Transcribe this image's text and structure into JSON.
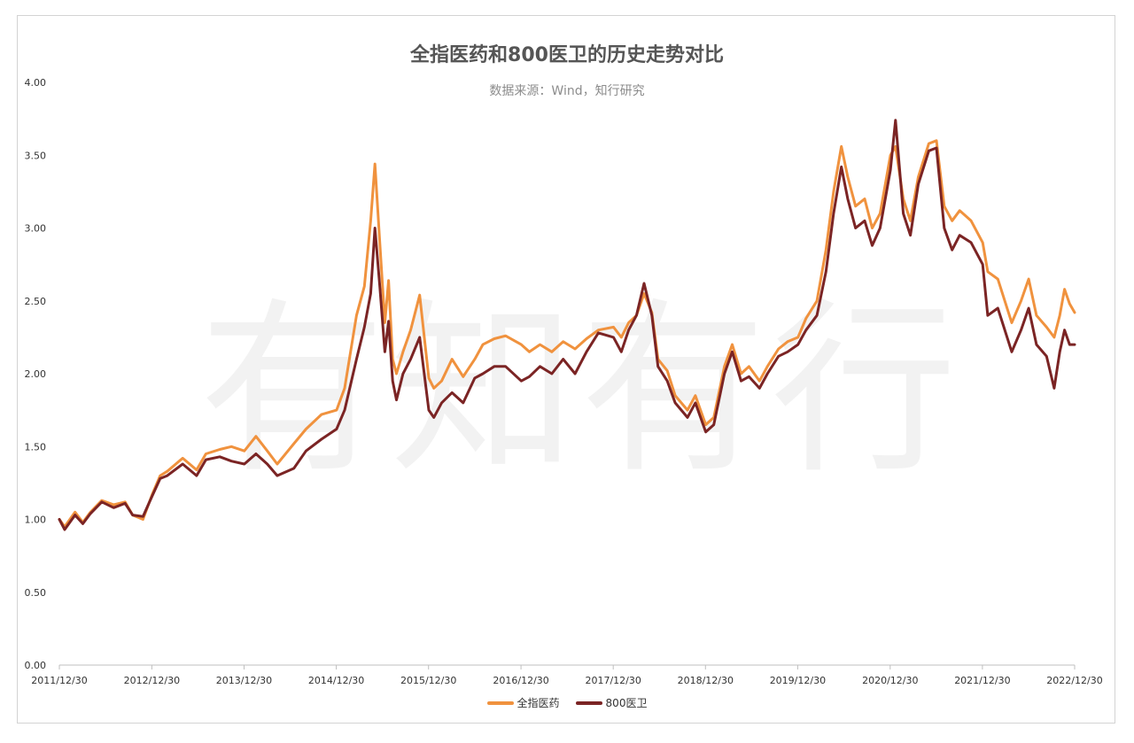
{
  "chart_data": {
    "type": "line",
    "title": "全指医药和800医卫的历史走势对比",
    "subtitle": "数据来源：Wind，知行研究",
    "watermark": "有知有行",
    "ylim": [
      0,
      4.0
    ],
    "yticks": [
      "0.00",
      "0.50",
      "1.00",
      "1.50",
      "2.00",
      "2.50",
      "3.00",
      "3.50",
      "4.00"
    ],
    "x_range": [
      "2011-12-30",
      "2022-12-30"
    ],
    "xticks": [
      "2011/12/30",
      "2012/12/30",
      "2013/12/30",
      "2014/12/30",
      "2015/12/30",
      "2016/12/30",
      "2017/12/30",
      "2018/12/30",
      "2019/12/30",
      "2020/12/30",
      "2021/12/30",
      "2022/12/30"
    ],
    "legend_position": "bottom",
    "series": [
      {
        "name": "全指医药",
        "color": "#F0923E",
        "points": [
          [
            "2011-12-30",
            1.0
          ],
          [
            "2012-01-20",
            0.95
          ],
          [
            "2012-03-01",
            1.05
          ],
          [
            "2012-04-01",
            0.98
          ],
          [
            "2012-05-01",
            1.05
          ],
          [
            "2012-06-15",
            1.13
          ],
          [
            "2012-08-01",
            1.1
          ],
          [
            "2012-09-15",
            1.12
          ],
          [
            "2012-10-15",
            1.03
          ],
          [
            "2012-11-25",
            1.0
          ],
          [
            "2012-12-31",
            1.17
          ],
          [
            "2013-02-01",
            1.3
          ],
          [
            "2013-03-01",
            1.33
          ],
          [
            "2013-05-01",
            1.42
          ],
          [
            "2013-06-25",
            1.34
          ],
          [
            "2013-08-01",
            1.45
          ],
          [
            "2013-09-25",
            1.48
          ],
          [
            "2013-11-10",
            1.5
          ],
          [
            "2013-12-31",
            1.47
          ],
          [
            "2014-02-15",
            1.57
          ],
          [
            "2014-04-01",
            1.47
          ],
          [
            "2014-05-10",
            1.38
          ],
          [
            "2014-07-15",
            1.52
          ],
          [
            "2014-09-01",
            1.62
          ],
          [
            "2014-11-01",
            1.72
          ],
          [
            "2014-12-31",
            1.75
          ],
          [
            "2015-02-01",
            1.9
          ],
          [
            "2015-03-20",
            2.4
          ],
          [
            "2015-04-20",
            2.6
          ],
          [
            "2015-05-15",
            3.05
          ],
          [
            "2015-06-01",
            3.44
          ],
          [
            "2015-06-20",
            2.9
          ],
          [
            "2015-07-10",
            2.35
          ],
          [
            "2015-07-25",
            2.64
          ],
          [
            "2015-08-10",
            2.1
          ],
          [
            "2015-08-25",
            2.0
          ],
          [
            "2015-09-20",
            2.15
          ],
          [
            "2015-10-20",
            2.3
          ],
          [
            "2015-11-25",
            2.54
          ],
          [
            "2015-12-31",
            1.97
          ],
          [
            "2016-01-20",
            1.9
          ],
          [
            "2016-02-20",
            1.95
          ],
          [
            "2016-04-01",
            2.1
          ],
          [
            "2016-05-15",
            1.98
          ],
          [
            "2016-06-30",
            2.1
          ],
          [
            "2016-08-01",
            2.2
          ],
          [
            "2016-09-15",
            2.24
          ],
          [
            "2016-10-30",
            2.26
          ],
          [
            "2016-12-31",
            2.2
          ],
          [
            "2017-02-01",
            2.15
          ],
          [
            "2017-03-15",
            2.2
          ],
          [
            "2017-05-01",
            2.15
          ],
          [
            "2017-06-15",
            2.22
          ],
          [
            "2017-08-01",
            2.17
          ],
          [
            "2017-09-15",
            2.24
          ],
          [
            "2017-11-01",
            2.3
          ],
          [
            "2017-12-31",
            2.32
          ],
          [
            "2018-01-31",
            2.25
          ],
          [
            "2018-03-01",
            2.35
          ],
          [
            "2018-04-01",
            2.4
          ],
          [
            "2018-05-01",
            2.55
          ],
          [
            "2018-06-01",
            2.42
          ],
          [
            "2018-06-25",
            2.1
          ],
          [
            "2018-08-01",
            2.02
          ],
          [
            "2018-09-01",
            1.85
          ],
          [
            "2018-10-20",
            1.75
          ],
          [
            "2018-11-20",
            1.85
          ],
          [
            "2018-12-31",
            1.65
          ],
          [
            "2019-02-01",
            1.7
          ],
          [
            "2019-03-15",
            2.05
          ],
          [
            "2019-04-15",
            2.2
          ],
          [
            "2019-05-20",
            2.0
          ],
          [
            "2019-06-20",
            2.05
          ],
          [
            "2019-08-01",
            1.95
          ],
          [
            "2019-09-01",
            2.05
          ],
          [
            "2019-10-15",
            2.17
          ],
          [
            "2019-11-20",
            2.22
          ],
          [
            "2019-12-31",
            2.25
          ],
          [
            "2020-02-01",
            2.38
          ],
          [
            "2020-03-15",
            2.5
          ],
          [
            "2020-04-20",
            2.85
          ],
          [
            "2020-05-20",
            3.25
          ],
          [
            "2020-06-20",
            3.56
          ],
          [
            "2020-07-15",
            3.35
          ],
          [
            "2020-08-15",
            3.15
          ],
          [
            "2020-09-20",
            3.2
          ],
          [
            "2020-10-20",
            3.0
          ],
          [
            "2020-11-20",
            3.1
          ],
          [
            "2020-12-31",
            3.5
          ],
          [
            "2021-01-20",
            3.56
          ],
          [
            "2021-02-20",
            3.2
          ],
          [
            "2021-03-20",
            3.05
          ],
          [
            "2021-04-20",
            3.35
          ],
          [
            "2021-06-01",
            3.58
          ],
          [
            "2021-07-01",
            3.6
          ],
          [
            "2021-08-01",
            3.15
          ],
          [
            "2021-09-01",
            3.05
          ],
          [
            "2021-10-01",
            3.12
          ],
          [
            "2021-11-15",
            3.05
          ],
          [
            "2021-12-31",
            2.9
          ],
          [
            "2022-01-20",
            2.7
          ],
          [
            "2022-03-01",
            2.65
          ],
          [
            "2022-04-25",
            2.35
          ],
          [
            "2022-06-01",
            2.5
          ],
          [
            "2022-07-01",
            2.65
          ],
          [
            "2022-08-01",
            2.4
          ],
          [
            "2022-09-10",
            2.32
          ],
          [
            "2022-10-10",
            2.25
          ],
          [
            "2022-11-01",
            2.4
          ],
          [
            "2022-11-20",
            2.58
          ],
          [
            "2022-12-10",
            2.48
          ],
          [
            "2022-12-30",
            2.42
          ]
        ]
      },
      {
        "name": "800医卫",
        "color": "#7B2424",
        "points": [
          [
            "2011-12-30",
            1.0
          ],
          [
            "2012-01-20",
            0.93
          ],
          [
            "2012-03-01",
            1.03
          ],
          [
            "2012-04-01",
            0.97
          ],
          [
            "2012-05-01",
            1.04
          ],
          [
            "2012-06-15",
            1.12
          ],
          [
            "2012-08-01",
            1.08
          ],
          [
            "2012-09-15",
            1.11
          ],
          [
            "2012-10-15",
            1.03
          ],
          [
            "2012-11-25",
            1.02
          ],
          [
            "2012-12-31",
            1.16
          ],
          [
            "2013-02-01",
            1.28
          ],
          [
            "2013-03-01",
            1.3
          ],
          [
            "2013-05-01",
            1.38
          ],
          [
            "2013-06-25",
            1.3
          ],
          [
            "2013-08-01",
            1.41
          ],
          [
            "2013-09-25",
            1.43
          ],
          [
            "2013-11-10",
            1.4
          ],
          [
            "2013-12-31",
            1.38
          ],
          [
            "2014-02-15",
            1.45
          ],
          [
            "2014-04-01",
            1.38
          ],
          [
            "2014-05-10",
            1.3
          ],
          [
            "2014-07-15",
            1.35
          ],
          [
            "2014-09-01",
            1.47
          ],
          [
            "2014-11-01",
            1.55
          ],
          [
            "2014-12-31",
            1.62
          ],
          [
            "2015-02-01",
            1.75
          ],
          [
            "2015-03-20",
            2.1
          ],
          [
            "2015-04-20",
            2.32
          ],
          [
            "2015-05-15",
            2.55
          ],
          [
            "2015-06-01",
            3.0
          ],
          [
            "2015-06-20",
            2.6
          ],
          [
            "2015-07-10",
            2.15
          ],
          [
            "2015-07-25",
            2.36
          ],
          [
            "2015-08-10",
            1.95
          ],
          [
            "2015-08-25",
            1.82
          ],
          [
            "2015-09-20",
            2.0
          ],
          [
            "2015-10-20",
            2.1
          ],
          [
            "2015-11-25",
            2.25
          ],
          [
            "2015-12-31",
            1.75
          ],
          [
            "2016-01-20",
            1.7
          ],
          [
            "2016-02-20",
            1.8
          ],
          [
            "2016-04-01",
            1.87
          ],
          [
            "2016-05-15",
            1.8
          ],
          [
            "2016-06-30",
            1.97
          ],
          [
            "2016-08-01",
            2.0
          ],
          [
            "2016-09-15",
            2.05
          ],
          [
            "2016-10-30",
            2.05
          ],
          [
            "2016-12-31",
            1.95
          ],
          [
            "2017-02-01",
            1.98
          ],
          [
            "2017-03-15",
            2.05
          ],
          [
            "2017-05-01",
            2.0
          ],
          [
            "2017-06-15",
            2.1
          ],
          [
            "2017-08-01",
            2.0
          ],
          [
            "2017-09-15",
            2.15
          ],
          [
            "2017-11-01",
            2.28
          ],
          [
            "2017-12-31",
            2.25
          ],
          [
            "2018-01-31",
            2.15
          ],
          [
            "2018-03-01",
            2.3
          ],
          [
            "2018-04-01",
            2.4
          ],
          [
            "2018-05-01",
            2.62
          ],
          [
            "2018-06-01",
            2.4
          ],
          [
            "2018-06-25",
            2.05
          ],
          [
            "2018-08-01",
            1.95
          ],
          [
            "2018-09-01",
            1.8
          ],
          [
            "2018-10-20",
            1.7
          ],
          [
            "2018-11-20",
            1.8
          ],
          [
            "2018-12-31",
            1.6
          ],
          [
            "2019-02-01",
            1.65
          ],
          [
            "2019-03-15",
            2.0
          ],
          [
            "2019-04-15",
            2.15
          ],
          [
            "2019-05-20",
            1.95
          ],
          [
            "2019-06-20",
            1.98
          ],
          [
            "2019-08-01",
            1.9
          ],
          [
            "2019-09-01",
            2.0
          ],
          [
            "2019-10-15",
            2.12
          ],
          [
            "2019-11-20",
            2.15
          ],
          [
            "2019-12-31",
            2.2
          ],
          [
            "2020-02-01",
            2.3
          ],
          [
            "2020-03-15",
            2.4
          ],
          [
            "2020-04-20",
            2.7
          ],
          [
            "2020-05-20",
            3.1
          ],
          [
            "2020-06-20",
            3.42
          ],
          [
            "2020-07-15",
            3.2
          ],
          [
            "2020-08-15",
            3.0
          ],
          [
            "2020-09-20",
            3.05
          ],
          [
            "2020-10-20",
            2.88
          ],
          [
            "2020-11-20",
            3.0
          ],
          [
            "2020-12-31",
            3.4
          ],
          [
            "2021-01-20",
            3.74
          ],
          [
            "2021-02-20",
            3.1
          ],
          [
            "2021-03-20",
            2.95
          ],
          [
            "2021-04-20",
            3.3
          ],
          [
            "2021-06-01",
            3.53
          ],
          [
            "2021-07-01",
            3.55
          ],
          [
            "2021-08-01",
            3.0
          ],
          [
            "2021-09-01",
            2.85
          ],
          [
            "2021-10-01",
            2.95
          ],
          [
            "2021-11-15",
            2.9
          ],
          [
            "2021-12-31",
            2.75
          ],
          [
            "2022-01-20",
            2.4
          ],
          [
            "2022-03-01",
            2.45
          ],
          [
            "2022-04-25",
            2.15
          ],
          [
            "2022-06-01",
            2.3
          ],
          [
            "2022-07-01",
            2.45
          ],
          [
            "2022-08-01",
            2.2
          ],
          [
            "2022-09-10",
            2.12
          ],
          [
            "2022-10-10",
            1.9
          ],
          [
            "2022-11-01",
            2.15
          ],
          [
            "2022-11-20",
            2.3
          ],
          [
            "2022-12-10",
            2.2
          ],
          [
            "2022-12-30",
            2.2
          ]
        ]
      }
    ]
  }
}
